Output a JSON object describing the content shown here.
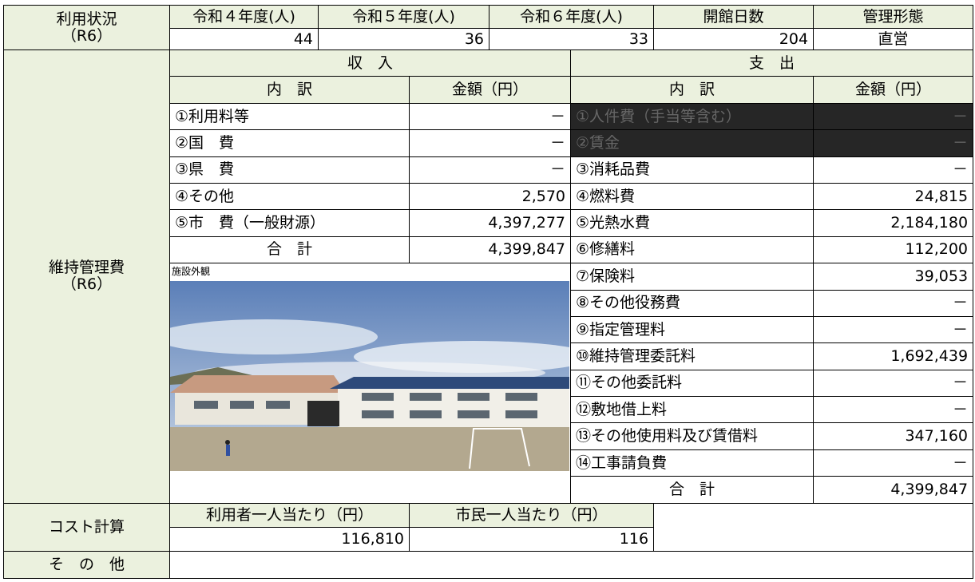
{
  "usage": {
    "label": "利用状況",
    "sub": "（R6）",
    "headers": [
      "令和４年度(人)",
      "令和５年度(人)",
      "令和６年度(人)",
      "開館日数",
      "管理形態"
    ],
    "values": [
      "44",
      "36",
      "33",
      "204",
      "直営"
    ]
  },
  "maintenance": {
    "label": "維持管理費",
    "sub": "（R6）",
    "income": {
      "title": "収　入",
      "col_item": "内　訳",
      "col_amount": "金額（円）",
      "rows": [
        [
          "①利用料等",
          "－"
        ],
        [
          "②国　費",
          "－"
        ],
        [
          "③県　費",
          "－"
        ],
        [
          "④その他",
          "2,570"
        ],
        [
          "⑤市　費（一般財源）",
          "4,397,277"
        ]
      ],
      "total": [
        "合　計",
        "4,399,847"
      ]
    },
    "photo_caption": "施設外観",
    "expense": {
      "title": "支　出",
      "col_item": "内　訳",
      "col_amount": "金額（円）",
      "rows": [
        [
          "①人件費（手当等含む）",
          "－"
        ],
        [
          "②賃金",
          "－"
        ],
        [
          "③消耗品費",
          "－"
        ],
        [
          "④燃料費",
          "24,815"
        ],
        [
          "⑤光熱水費",
          "2,184,180"
        ],
        [
          "⑥修繕料",
          "112,200"
        ],
        [
          "⑦保険料",
          "39,053"
        ],
        [
          "⑧その他役務費",
          "－"
        ],
        [
          "⑨指定管理料",
          "－"
        ],
        [
          "⑩維持管理委託料",
          "1,692,439"
        ],
        [
          "⑪その他委託料",
          "－"
        ],
        [
          "⑫敷地借上料",
          "－"
        ],
        [
          "⑬その他使用料及び賃借料",
          "347,160"
        ],
        [
          "⑭工事請負費",
          "－"
        ]
      ],
      "total": [
        "合　計",
        "4,399,847"
      ]
    }
  },
  "cost": {
    "label": "コスト計算",
    "headers": [
      "利用者一人当たり（円）",
      "市民一人当たり（円）"
    ],
    "values": [
      "116,810",
      "116"
    ]
  },
  "other": {
    "label": "そ　の　他"
  }
}
